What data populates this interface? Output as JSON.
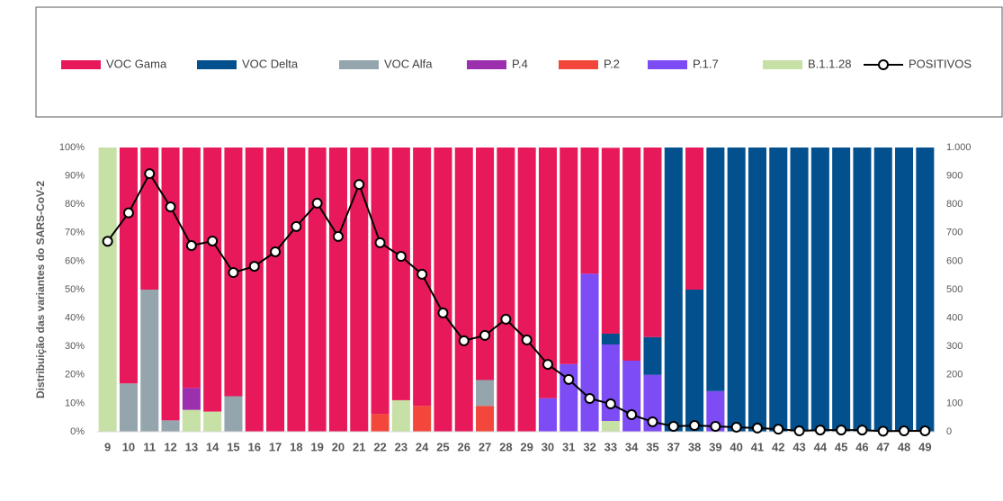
{
  "chart_data": {
    "type": "bar",
    "stacked": true,
    "y_label": "Distribuição das variantes do SARS-CoV-2",
    "categories": [
      "9",
      "10",
      "11",
      "12",
      "13",
      "14",
      "15",
      "16",
      "17",
      "18",
      "19",
      "20",
      "21",
      "22",
      "23",
      "24",
      "25",
      "26",
      "27",
      "28",
      "29",
      "30",
      "31",
      "32",
      "33",
      "34",
      "35",
      "37",
      "38",
      "39",
      "40",
      "41",
      "42",
      "43",
      "44",
      "45",
      "46",
      "47",
      "48",
      "49"
    ],
    "series": [
      {
        "name": "VOC Gama",
        "color": "#e8195a",
        "values": [
          0,
          83,
          50,
          96,
          84.6,
          92.9,
          87.5,
          100,
          100,
          100,
          100,
          100,
          100,
          93.7,
          88.9,
          90.9,
          100,
          100,
          81.8,
          100,
          100,
          88.2,
          76.2,
          44.4,
          65.4,
          75,
          66.7,
          0,
          50,
          0,
          0,
          0,
          0,
          0,
          0,
          0,
          0,
          0,
          0,
          0
        ]
      },
      {
        "name": "VOC Delta",
        "color": "#03508f",
        "values": [
          0,
          0,
          0,
          0,
          0,
          0,
          0,
          0,
          0,
          0,
          0,
          0,
          0,
          0,
          0,
          0,
          0,
          0,
          0,
          0,
          0,
          0,
          0,
          0,
          3.8,
          0,
          13.3,
          100,
          50,
          85.7,
          100,
          100,
          100,
          100,
          100,
          100,
          100,
          100,
          100,
          100
        ]
      },
      {
        "name": "VOC Alfa",
        "color": "#95a5ae",
        "values": [
          0,
          17,
          50,
          4,
          0,
          0,
          12.5,
          0,
          0,
          0,
          0,
          0,
          0,
          0,
          0,
          0,
          0,
          0,
          9.1,
          0,
          0,
          0,
          0,
          0,
          0,
          0,
          0,
          0,
          0,
          0,
          0,
          0,
          0,
          0,
          0,
          0,
          0,
          0,
          0,
          0
        ]
      },
      {
        "name": "P.4",
        "color": "#9c2fae",
        "values": [
          0,
          0,
          0,
          0,
          7.7,
          0,
          0,
          0,
          0,
          0,
          0,
          0,
          0,
          0,
          0,
          0,
          0,
          0,
          0,
          0,
          0,
          0,
          0,
          0,
          0,
          0,
          0,
          0,
          0,
          0,
          0,
          0,
          0,
          0,
          0,
          0,
          0,
          0,
          0,
          0
        ]
      },
      {
        "name": "P.2",
        "color": "#f2473a",
        "values": [
          0,
          0,
          0,
          0,
          0,
          0,
          0,
          0,
          0,
          0,
          0,
          0,
          0,
          6.3,
          0,
          9.1,
          0,
          0,
          9.1,
          0,
          0,
          0,
          0,
          0,
          0,
          0,
          0,
          0,
          0,
          0,
          0,
          0,
          0,
          0,
          0,
          0,
          0,
          0,
          0,
          0
        ]
      },
      {
        "name": "P.1.7",
        "color": "#7d4cf5",
        "values": [
          0,
          0,
          0,
          0,
          0,
          0,
          0,
          0,
          0,
          0,
          0,
          0,
          0,
          0,
          0,
          0,
          0,
          0,
          0,
          0,
          0,
          11.8,
          23.8,
          55.6,
          26.9,
          25,
          20,
          0,
          0,
          14.3,
          0,
          0,
          0,
          0,
          0,
          0,
          0,
          0,
          0,
          0
        ]
      },
      {
        "name": "B.1.1.28",
        "color": "#c6e0a6",
        "values": [
          100,
          0,
          0,
          0,
          7.7,
          7.1,
          0,
          0,
          0,
          0,
          0,
          0,
          0,
          0,
          11.1,
          0,
          0,
          0,
          0,
          0,
          0,
          0,
          0,
          0,
          3.8,
          0,
          0,
          0,
          0,
          0,
          0,
          0,
          0,
          0,
          0,
          0,
          0,
          0,
          0,
          0
        ]
      },
      {
        "name": "POSITIVOS",
        "type": "line",
        "axis": "y2",
        "color": "#000000",
        "values": [
          670,
          770,
          908,
          791,
          655,
          671,
          560,
          582,
          633,
          722,
          804,
          687,
          870,
          665,
          617,
          554,
          418,
          320,
          339,
          396,
          323,
          237,
          184,
          117,
          98,
          60,
          35,
          19,
          22,
          19,
          16,
          13,
          9,
          3,
          6,
          6,
          6,
          2,
          3,
          3
        ]
      }
    ],
    "ylim": [
      0,
      100
    ],
    "yticks": [
      {
        "value": 0,
        "label": "0%"
      },
      {
        "value": 10,
        "label": "10%"
      },
      {
        "value": 20,
        "label": "20%"
      },
      {
        "value": 30,
        "label": "30%"
      },
      {
        "value": 40,
        "label": "40%"
      },
      {
        "value": 50,
        "label": "50%"
      },
      {
        "value": 60,
        "label": "60%"
      },
      {
        "value": 70,
        "label": "70%"
      },
      {
        "value": 80,
        "label": "80%"
      },
      {
        "value": 90,
        "label": "90%"
      },
      {
        "value": 100,
        "label": "100%"
      }
    ],
    "y2lim": [
      0,
      1000
    ],
    "y2ticks": [
      0,
      100,
      200,
      300,
      400,
      500,
      600,
      700,
      800,
      900,
      {
        "value": 1000,
        "label": "1.000"
      }
    ],
    "grid": false,
    "legend": "top"
  }
}
